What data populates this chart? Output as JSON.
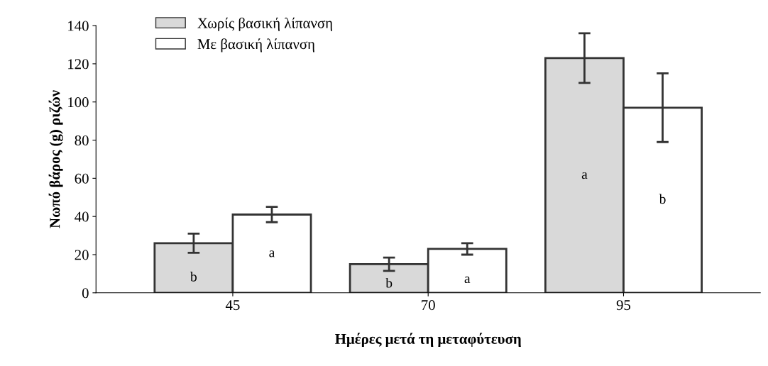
{
  "chart_data": {
    "type": "bar",
    "xlabel": "Ημέρες μετά τη μεταφύτευση",
    "ylabel": "Νωπό βάρος (g) ριζών",
    "categories": [
      "45",
      "70",
      "95"
    ],
    "series": [
      {
        "name": "Χωρίς βασική λίπανση",
        "color": "#d9d9d9",
        "values": [
          26,
          15,
          123
        ],
        "errors": [
          5,
          3.5,
          13
        ],
        "value_labels": [
          "b",
          "b",
          "a"
        ]
      },
      {
        "name": "Με βασική λίπανση",
        "color": "#ffffff",
        "values": [
          41,
          23,
          97
        ],
        "errors": [
          4,
          3,
          18
        ],
        "value_labels": [
          "a",
          "a",
          "b"
        ]
      }
    ],
    "ylim": [
      0,
      140
    ],
    "yticks": [
      0,
      20,
      40,
      60,
      80,
      100,
      120,
      140
    ],
    "grid": false,
    "legend": "top left"
  }
}
